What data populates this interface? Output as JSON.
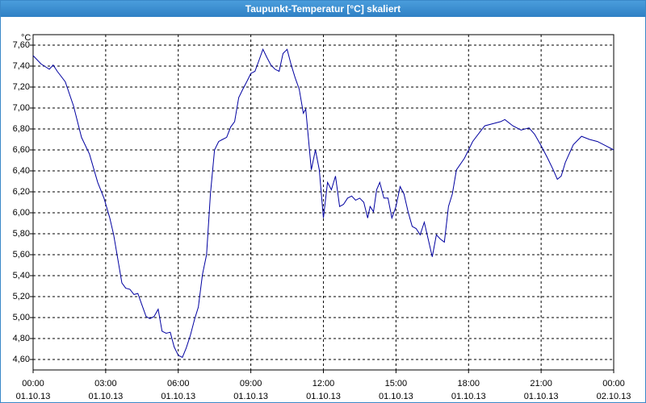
{
  "chart_data": {
    "type": "line",
    "title": "Taupunkt-Temperatur [°C] skaliert",
    "y_unit": "°C",
    "x": [
      0,
      0.33,
      0.67,
      0.83,
      1.0,
      1.33,
      1.67,
      2.0,
      2.33,
      2.67,
      2.93,
      3.17,
      3.33,
      3.5,
      3.67,
      3.83,
      4.0,
      4.17,
      4.33,
      4.5,
      4.67,
      4.83,
      5.0,
      5.17,
      5.33,
      5.5,
      5.67,
      5.83,
      6.0,
      6.17,
      6.33,
      6.5,
      6.67,
      6.83,
      7.0,
      7.17,
      7.33,
      7.5,
      7.67,
      7.83,
      8.0,
      8.17,
      8.33,
      8.5,
      8.67,
      8.83,
      9.0,
      9.17,
      9.33,
      9.5,
      9.67,
      9.83,
      10.0,
      10.17,
      10.33,
      10.5,
      10.67,
      10.83,
      11.0,
      11.17,
      11.27,
      11.5,
      11.67,
      11.83,
      12.0,
      12.17,
      12.33,
      12.5,
      12.67,
      12.83,
      13.0,
      13.17,
      13.33,
      13.5,
      13.67,
      13.83,
      13.93,
      14.07,
      14.2,
      14.33,
      14.5,
      14.67,
      14.83,
      15.0,
      15.17,
      15.33,
      15.5,
      15.67,
      15.83,
      16.0,
      16.17,
      16.33,
      16.5,
      16.67,
      16.83,
      17.0,
      17.17,
      17.33,
      17.5,
      17.83,
      18.17,
      18.5,
      18.67,
      19.0,
      19.33,
      19.5,
      19.83,
      20.17,
      20.5,
      20.73,
      21.0,
      21.27,
      21.5,
      21.67,
      21.83,
      22.0,
      22.33,
      22.67,
      23.0,
      23.33,
      23.67,
      24.0
    ],
    "series": [
      {
        "color": "#0000a0",
        "values": [
          7.5,
          7.42,
          7.37,
          7.41,
          7.35,
          7.25,
          7.02,
          6.72,
          6.56,
          6.29,
          6.14,
          5.95,
          5.79,
          5.56,
          5.33,
          5.28,
          5.27,
          5.22,
          5.23,
          5.12,
          5.01,
          4.99,
          5.01,
          5.08,
          4.87,
          4.85,
          4.86,
          4.72,
          4.64,
          4.62,
          4.71,
          4.83,
          4.98,
          5.1,
          5.41,
          5.6,
          6.18,
          6.6,
          6.68,
          6.7,
          6.72,
          6.82,
          6.87,
          7.1,
          7.18,
          7.25,
          7.33,
          7.35,
          7.45,
          7.56,
          7.48,
          7.41,
          7.37,
          7.35,
          7.52,
          7.56,
          7.41,
          7.29,
          7.18,
          6.95,
          6.99,
          6.41,
          6.6,
          6.41,
          5.95,
          6.29,
          6.22,
          6.35,
          6.06,
          6.08,
          6.14,
          6.16,
          6.12,
          6.14,
          6.1,
          5.95,
          6.06,
          6.01,
          6.22,
          6.29,
          6.14,
          6.14,
          5.95,
          6.06,
          6.25,
          6.18,
          6.01,
          5.87,
          5.85,
          5.79,
          5.91,
          5.75,
          5.58,
          5.79,
          5.75,
          5.72,
          6.06,
          6.18,
          6.41,
          6.52,
          6.68,
          6.78,
          6.83,
          6.85,
          6.87,
          6.89,
          6.83,
          6.79,
          6.81,
          6.75,
          6.64,
          6.52,
          6.41,
          6.32,
          6.35,
          6.48,
          6.65,
          6.73,
          6.7,
          6.68,
          6.64,
          6.6
        ]
      }
    ],
    "xlim": [
      0,
      24
    ],
    "xticks": [
      {
        "value": 0,
        "label": "00:00"
      },
      {
        "value": 3,
        "label": "03:00"
      },
      {
        "value": 6,
        "label": "06:00"
      },
      {
        "value": 9,
        "label": "09:00"
      },
      {
        "value": 12,
        "label": "12:00"
      },
      {
        "value": 15,
        "label": "15:00"
      },
      {
        "value": 18,
        "label": "18:00"
      },
      {
        "value": 21,
        "label": "21:00"
      },
      {
        "value": 24,
        "label": "00:00"
      }
    ],
    "xtick_dates": [
      "01.10.13",
      "01.10.13",
      "01.10.13",
      "01.10.13",
      "01.10.13",
      "01.10.13",
      "01.10.13",
      "01.10.13",
      "02.10.13"
    ],
    "ylim": [
      4.5,
      7.7
    ],
    "yticks": [
      {
        "value": 4.6,
        "label": "4,60"
      },
      {
        "value": 4.8,
        "label": "4,80"
      },
      {
        "value": 5.0,
        "label": "5,00"
      },
      {
        "value": 5.2,
        "label": "5,20"
      },
      {
        "value": 5.4,
        "label": "5,40"
      },
      {
        "value": 5.6,
        "label": "5,60"
      },
      {
        "value": 5.8,
        "label": "5,80"
      },
      {
        "value": 6.0,
        "label": "6,00"
      },
      {
        "value": 6.2,
        "label": "6,20"
      },
      {
        "value": 6.4,
        "label": "6,40"
      },
      {
        "value": 6.6,
        "label": "6,60"
      },
      {
        "value": 6.8,
        "label": "6,80"
      },
      {
        "value": 7.0,
        "label": "7,00"
      },
      {
        "value": 7.2,
        "label": "7,20"
      },
      {
        "value": 7.4,
        "label": "7,40"
      },
      {
        "value": 7.6,
        "label": "7,60"
      }
    ],
    "grid": true
  }
}
